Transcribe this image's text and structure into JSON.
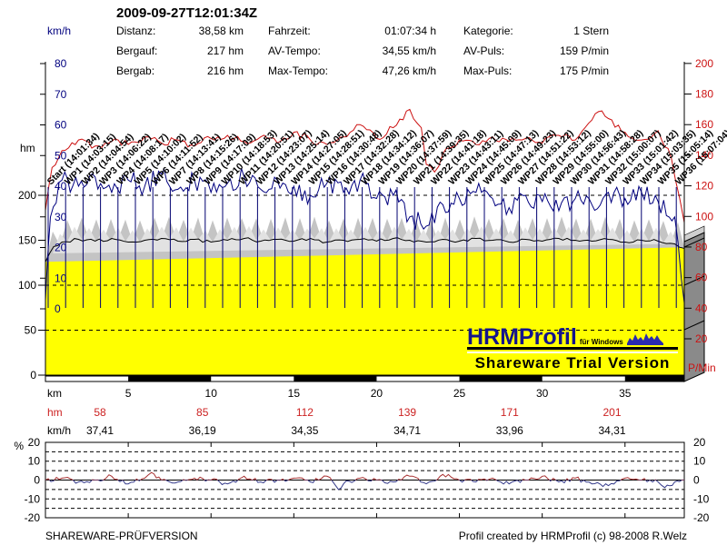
{
  "header": {
    "title": "2009-09-27T12:01:34Z",
    "rows": [
      [
        {
          "label": "Distanz:",
          "value": "38,58 km"
        },
        {
          "label": "Fahrzeit:",
          "value": "01:07:34 h"
        },
        {
          "label": "Kategorie:",
          "value": "1 Stern"
        }
      ],
      [
        {
          "label": "Bergauf:",
          "value": "217 hm"
        },
        {
          "label": "AV-Tempo:",
          "value": "34,55 km/h"
        },
        {
          "label": "AV-Puls:",
          "value": "159 P/min"
        }
      ],
      [
        {
          "label": "Bergab:",
          "value": "216 hm"
        },
        {
          "label": "Max-Tempo:",
          "value": "47,26 km/h"
        },
        {
          "label": "Max-Puls:",
          "value": "175 P/min"
        }
      ]
    ]
  },
  "chart_data": {
    "type": "line",
    "title": "2009-09-27T12:01:34Z",
    "x_axis": {
      "label": "km",
      "range": [
        0,
        38.58
      ],
      "ticks": [
        5,
        10,
        15,
        20,
        25,
        30,
        35
      ]
    },
    "y_axis_speed": {
      "label": "km/h",
      "color": "#00007f",
      "range": [
        0,
        80
      ],
      "ticks": [
        80,
        70,
        60,
        50,
        40,
        30,
        20,
        10,
        0
      ]
    },
    "y_axis_elevation": {
      "label": "hm",
      "color": "#000000",
      "range": [
        0,
        350
      ],
      "ticks": [
        200,
        150,
        100,
        50,
        0
      ]
    },
    "y_axis_pulse": {
      "label": "P/Min",
      "color": "#cc1111",
      "range": [
        20,
        200
      ],
      "ticks": [
        200,
        180,
        160,
        140,
        120,
        100,
        80,
        60,
        40,
        20
      ]
    },
    "grid": "dashed",
    "series": [
      {
        "name": "Puls",
        "unit": "P/min",
        "color": "#cc1111",
        "avg": 159,
        "max": 175,
        "points": [
          [
            0,
            104
          ],
          [
            0.4,
            132
          ],
          [
            1,
            143
          ],
          [
            2,
            150
          ],
          [
            3,
            146
          ],
          [
            4,
            149
          ],
          [
            5,
            147
          ],
          [
            6,
            152
          ],
          [
            7,
            148
          ],
          [
            8,
            150
          ],
          [
            9,
            146
          ],
          [
            10,
            151
          ],
          [
            11,
            153
          ],
          [
            12,
            149
          ],
          [
            13,
            152
          ],
          [
            14,
            148
          ],
          [
            15,
            155
          ],
          [
            16,
            150
          ],
          [
            17,
            147
          ],
          [
            18,
            152
          ],
          [
            19,
            160
          ],
          [
            20,
            151
          ],
          [
            21,
            158
          ],
          [
            22,
            170
          ],
          [
            22.7,
            158
          ],
          [
            23,
            134
          ],
          [
            23.5,
            129
          ],
          [
            24,
            141
          ],
          [
            25,
            150
          ],
          [
            26,
            147
          ],
          [
            27,
            152
          ],
          [
            28,
            149
          ],
          [
            29,
            151
          ],
          [
            30,
            148
          ],
          [
            31,
            153
          ],
          [
            32,
            150
          ],
          [
            33,
            163
          ],
          [
            33.6,
            169
          ],
          [
            34,
            164
          ],
          [
            35,
            155
          ],
          [
            36,
            150
          ],
          [
            37,
            156
          ],
          [
            37.8,
            138
          ],
          [
            38.3,
            112
          ],
          [
            38.58,
            96
          ]
        ]
      },
      {
        "name": "Tempo",
        "unit": "km/h",
        "color": "#00007f",
        "avg": 34.55,
        "max": 47.26,
        "points": [
          [
            0,
            3
          ],
          [
            0.3,
            30
          ],
          [
            1,
            42
          ],
          [
            2,
            40
          ],
          [
            3,
            43
          ],
          [
            4,
            38
          ],
          [
            5,
            42
          ],
          [
            6,
            40
          ],
          [
            7,
            44
          ],
          [
            8,
            39
          ],
          [
            9,
            42
          ],
          [
            10,
            38
          ],
          [
            11,
            41
          ],
          [
            12,
            43
          ],
          [
            13,
            39
          ],
          [
            14,
            42
          ],
          [
            15,
            40
          ],
          [
            16,
            37
          ],
          [
            17,
            41
          ],
          [
            18,
            38
          ],
          [
            19,
            42
          ],
          [
            20,
            36
          ],
          [
            21,
            37
          ],
          [
            22,
            30
          ],
          [
            23,
            27
          ],
          [
            24,
            34
          ],
          [
            25,
            36
          ],
          [
            26,
            38
          ],
          [
            27,
            36
          ],
          [
            28,
            33
          ],
          [
            29,
            37
          ],
          [
            30,
            35
          ],
          [
            31,
            32
          ],
          [
            32,
            36
          ],
          [
            33,
            34
          ],
          [
            34,
            38
          ],
          [
            35,
            36
          ],
          [
            36,
            38
          ],
          [
            37,
            35
          ],
          [
            38,
            30
          ],
          [
            38.4,
            10
          ],
          [
            38.58,
            2
          ]
        ]
      },
      {
        "name": "Höhe",
        "unit": "hm",
        "color": "#ffff00",
        "total_up": 217,
        "total_down": 216,
        "points": [
          [
            0,
            126
          ],
          [
            0.5,
            143
          ],
          [
            1,
            148
          ],
          [
            2,
            151
          ],
          [
            3,
            149
          ],
          [
            4,
            152
          ],
          [
            5,
            148
          ],
          [
            6,
            150
          ],
          [
            7,
            152
          ],
          [
            8,
            149
          ],
          [
            9,
            151
          ],
          [
            10,
            148
          ],
          [
            11,
            150
          ],
          [
            12,
            152
          ],
          [
            13,
            149
          ],
          [
            14,
            151
          ],
          [
            15,
            149
          ],
          [
            16,
            152
          ],
          [
            17,
            148
          ],
          [
            18,
            150
          ],
          [
            19,
            151
          ],
          [
            20,
            149
          ],
          [
            21,
            152
          ],
          [
            22,
            150
          ],
          [
            23,
            148
          ],
          [
            24,
            151
          ],
          [
            25,
            149
          ],
          [
            26,
            152
          ],
          [
            27,
            150
          ],
          [
            28,
            148
          ],
          [
            29,
            151
          ],
          [
            30,
            149
          ],
          [
            31,
            152
          ],
          [
            32,
            150
          ],
          [
            33,
            149
          ],
          [
            34,
            151
          ],
          [
            35,
            148
          ],
          [
            36,
            150
          ],
          [
            37,
            149
          ],
          [
            38,
            146
          ],
          [
            38.58,
            141
          ]
        ]
      }
    ],
    "waypoints": [
      {
        "label": "Start",
        "time": "14:01:34"
      },
      {
        "label": "WP1",
        "time": "14:03:15"
      },
      {
        "label": "WP2",
        "time": "14:04:54"
      },
      {
        "label": "WP3",
        "time": "14:06:22"
      },
      {
        "label": "WP4",
        "time": "14:08:17"
      },
      {
        "label": "WP5",
        "time": "14:10:02"
      },
      {
        "label": "WP6",
        "time": "14:11:52"
      },
      {
        "label": "WP7",
        "time": "14:13:41"
      },
      {
        "label": "WP8",
        "time": "14:15:26"
      },
      {
        "label": "WP9",
        "time": "14:17:09"
      },
      {
        "label": "WP10",
        "time": "14:18:53"
      },
      {
        "label": "WP11",
        "time": "14:20:51"
      },
      {
        "label": "WP12",
        "time": "14:23:07"
      },
      {
        "label": "WP13",
        "time": "14:25:14"
      },
      {
        "label": "WP14",
        "time": "14:27:05"
      },
      {
        "label": "WP15",
        "time": "14:28:51"
      },
      {
        "label": "WP16",
        "time": "14:30:48"
      },
      {
        "label": "WP17",
        "time": "14:32:28"
      },
      {
        "label": "WP18",
        "time": "14:34:12"
      },
      {
        "label": "WP19",
        "time": "14:36:07"
      },
      {
        "label": "WP20",
        "time": "14:37:59"
      },
      {
        "label": "WP21",
        "time": "14:39:35"
      },
      {
        "label": "WP22",
        "time": "14:41:18"
      },
      {
        "label": "WP23",
        "time": "14:43:11"
      },
      {
        "label": "WP24",
        "time": "14:45:09"
      },
      {
        "label": "WP25",
        "time": "14:47:13"
      },
      {
        "label": "WP26",
        "time": "14:49:23"
      },
      {
        "label": "WP27",
        "time": "14:51:22"
      },
      {
        "label": "WP28",
        "time": "14:53:12"
      },
      {
        "label": "WP29",
        "time": "14:55:00"
      },
      {
        "label": "WP30",
        "time": "14:56:43"
      },
      {
        "label": "WP31",
        "time": "14:58:28"
      },
      {
        "label": "WP32",
        "time": "15:00:07"
      },
      {
        "label": "WP33",
        "time": "15:01:42"
      },
      {
        "label": "WP34",
        "time": "15:03:35"
      },
      {
        "label": "WP35",
        "time": "15:05:14"
      },
      {
        "label": "WP36",
        "time": "15:07:04"
      }
    ],
    "segment_table": {
      "km_label": "km",
      "hm_label": "hm",
      "hm_color": "#cc2222",
      "kmh_label": "km/h",
      "hm_values": [
        "58",
        "85",
        "112",
        "139",
        "171",
        "201"
      ],
      "kmh_values": [
        "37,41",
        "36,19",
        "34,35",
        "34,71",
        "33,96",
        "34,31"
      ]
    },
    "gradient_chart": {
      "type": "line",
      "ylabel": "%",
      "range": [
        -20,
        20
      ],
      "ticks": [
        20,
        10,
        0,
        -10,
        -20
      ],
      "color_up": "#a83030",
      "color_down": "#343a8a",
      "points": [
        [
          0,
          0
        ],
        [
          1,
          1
        ],
        [
          2,
          -1
        ],
        [
          3,
          0
        ],
        [
          4,
          2
        ],
        [
          5,
          -2
        ],
        [
          6,
          1
        ],
        [
          6.4,
          4
        ],
        [
          7,
          0
        ],
        [
          8,
          -1
        ],
        [
          9,
          1
        ],
        [
          10,
          0
        ],
        [
          11,
          -2
        ],
        [
          12,
          2
        ],
        [
          13,
          -1
        ],
        [
          14,
          0
        ],
        [
          15,
          1
        ],
        [
          16,
          -1
        ],
        [
          17,
          2
        ],
        [
          17.7,
          -5
        ],
        [
          18,
          -2
        ],
        [
          19,
          1
        ],
        [
          20,
          0
        ],
        [
          21,
          -1
        ],
        [
          22,
          2
        ],
        [
          23,
          -2
        ],
        [
          24,
          3
        ],
        [
          25,
          0
        ],
        [
          26,
          -1
        ],
        [
          27,
          1
        ],
        [
          28,
          -2
        ],
        [
          29,
          0
        ],
        [
          30,
          2
        ],
        [
          31,
          -1
        ],
        [
          32,
          1
        ],
        [
          33,
          -2
        ],
        [
          34,
          -3
        ],
        [
          35,
          1
        ],
        [
          36,
          0
        ],
        [
          37,
          -1
        ],
        [
          37.4,
          -4
        ],
        [
          38,
          -1
        ],
        [
          38.58,
          0
        ]
      ]
    }
  },
  "logo": {
    "brand": "HRMProfil",
    "sub": "für Windows",
    "banner": "Shareware Trial  Version"
  },
  "footer": {
    "left": "SHAREWARE-PRÜFVERSION",
    "right": "Profil created by HRMProfil (c) 98-2008 R.Welz"
  }
}
